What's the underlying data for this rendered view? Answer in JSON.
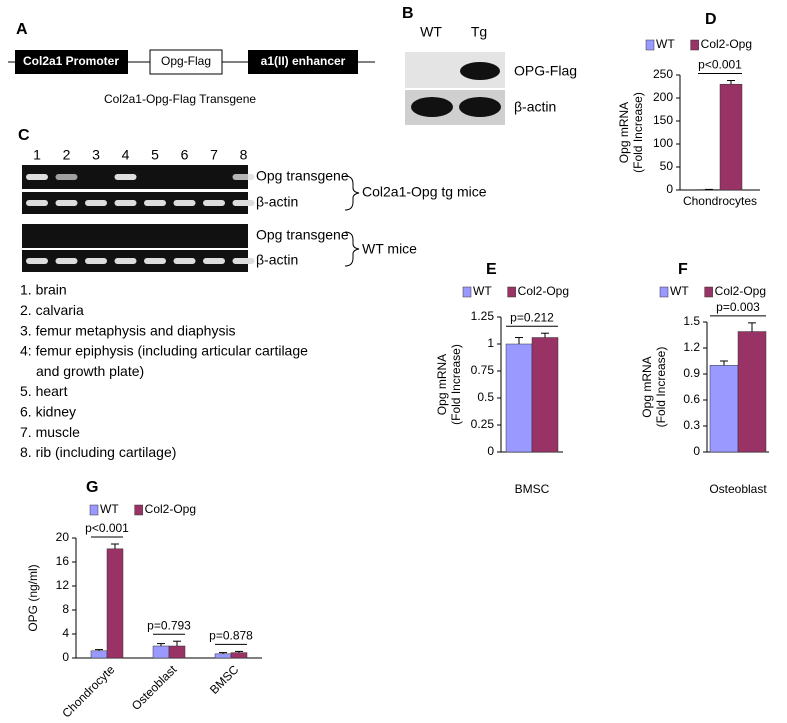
{
  "panels": {
    "A": {
      "label": "A",
      "promoter": "Col2a1 Promoter",
      "gene": "Opg-Flag",
      "enhancer": "a1(II) enhancer",
      "caption": "Col2a1-Opg-Flag  Transgene"
    },
    "B": {
      "label": "B",
      "lanes": [
        "WT",
        "Tg"
      ],
      "rows": [
        "OPG-Flag",
        "β-actin"
      ]
    },
    "C": {
      "label": "C",
      "lanes": [
        "1",
        "2",
        "3",
        "4",
        "5",
        "6",
        "7",
        "8"
      ],
      "rows": [
        "Opg transgene",
        "β-actin",
        "Opg transgene",
        "β-actin"
      ],
      "groups": [
        "Col2a1-Opg tg mice",
        "WT mice"
      ],
      "legend": [
        "1. brain",
        "2. calvaria",
        "3. femur metaphysis and diaphysis",
        "4: femur epiphysis (including articular cartilage",
        "and growth plate)",
        "5. heart",
        "6. kidney",
        "7. muscle",
        "8. rib (including cartilage)"
      ]
    }
  },
  "chart_data": [
    {
      "type": "bar",
      "label": "D",
      "y_label": [
        "Opg mRNA",
        "(Fold Increase)"
      ],
      "categories": [
        "Chondrocytes"
      ],
      "series": [
        {
          "name": "WT",
          "color": "#9999ff",
          "values": [
            1
          ],
          "errors": [
            0.3
          ]
        },
        {
          "name": "Col2-Opg",
          "color": "#993366",
          "values": [
            230
          ],
          "errors": [
            8
          ]
        }
      ],
      "annotations": [
        "p<0.001"
      ],
      "ylim": [
        0,
        250
      ],
      "yticks": [
        0,
        50,
        100,
        150,
        200,
        250
      ]
    },
    {
      "type": "bar",
      "label": "E",
      "y_label": [
        "Opg mRNA",
        "(Fold Increase)"
      ],
      "categories": [
        "BMSC"
      ],
      "series": [
        {
          "name": "WT",
          "color": "#9999ff",
          "values": [
            1.0
          ],
          "errors": [
            0.06
          ]
        },
        {
          "name": "Col2-Opg",
          "color": "#993366",
          "values": [
            1.06
          ],
          "errors": [
            0.04
          ]
        }
      ],
      "annotations": [
        "p=0.212"
      ],
      "ylim": [
        0,
        1.25
      ],
      "yticks": [
        0,
        0.25,
        0.5,
        0.75,
        1,
        1.25
      ]
    },
    {
      "type": "bar",
      "label": "F",
      "y_label": [
        "Opg mRNA",
        "(Fold Increase)"
      ],
      "categories": [
        "Osteoblast"
      ],
      "series": [
        {
          "name": "WT",
          "color": "#9999ff",
          "values": [
            1.0
          ],
          "errors": [
            0.05
          ]
        },
        {
          "name": "Col2-Opg",
          "color": "#993366",
          "values": [
            1.39
          ],
          "errors": [
            0.1
          ]
        }
      ],
      "annotations": [
        "p=0.003"
      ],
      "ylim": [
        0,
        1.5
      ],
      "yticks": [
        0,
        0.3,
        0.6,
        0.9,
        1.2,
        1.5
      ]
    },
    {
      "type": "bar",
      "label": "G",
      "y_label": [
        "OPG (ng/ml)"
      ],
      "categories": [
        "Chondrocyte",
        "Osteoblast",
        "BMSC"
      ],
      "series": [
        {
          "name": "WT",
          "color": "#9999ff",
          "values": [
            1.2,
            2.0,
            0.7
          ],
          "errors": [
            0.2,
            0.4,
            0.2
          ]
        },
        {
          "name": "Col2-Opg",
          "color": "#993366",
          "values": [
            18.2,
            2.0,
            0.9
          ],
          "errors": [
            0.8,
            0.8,
            0.2
          ]
        }
      ],
      "annotations": [
        "p<0.001",
        "p=0.793",
        "p=0.878"
      ],
      "ylim": [
        0,
        20
      ],
      "yticks": [
        0,
        4,
        8,
        12,
        16,
        20
      ]
    }
  ]
}
